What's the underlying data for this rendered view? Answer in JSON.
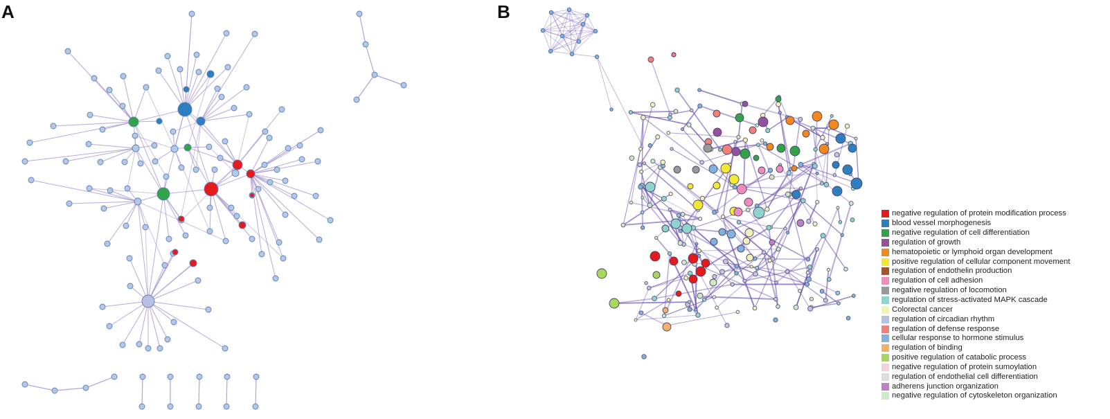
{
  "panels": {
    "a_label": "A",
    "b_label": "B"
  },
  "colors": {
    "node_default": "#b1c8e8",
    "node_stroke": "#5f7db4",
    "edge_a": "#a999d4",
    "edge_b": "#6a4fb4"
  },
  "legend": [
    {
      "label": "negative regulation of protein modification process",
      "color": "#e41a1c"
    },
    {
      "label": "blood vessel morphogenesis",
      "color": "#2e7fc1"
    },
    {
      "label": "negative regulation of cell differentiation",
      "color": "#33a34a"
    },
    {
      "label": "regulation of growth",
      "color": "#9451a0"
    },
    {
      "label": "hematopoietic or lymphoid organ development",
      "color": "#f5871f"
    },
    {
      "label": "positive regulation of cellular component movement",
      "color": "#f4e832"
    },
    {
      "label": "regulation of endothelin production",
      "color": "#a5542c"
    },
    {
      "label": "regulation of cell adhesion",
      "color": "#f08bbd"
    },
    {
      "label": "negative regulation of locomotion",
      "color": "#999999"
    },
    {
      "label": "regulation of stress-activated MAPK cascade",
      "color": "#8fd3d0"
    },
    {
      "label": "Colorectal cancer",
      "color": "#f2f2b8"
    },
    {
      "label": "regulation of circadian rhythm",
      "color": "#b9bfe0"
    },
    {
      "label": "regulation of defense response",
      "color": "#f08078"
    },
    {
      "label": "cellular response to hormone stimulus",
      "color": "#7fb2de"
    },
    {
      "label": "regulation of binding",
      "color": "#f4b06a"
    },
    {
      "label": "positive regulation of catabolic process",
      "color": "#a9d65f"
    },
    {
      "label": "negative regulation of protein sumoylation",
      "color": "#f7cede"
    },
    {
      "label": "regulation of endothelial cell differentiation",
      "color": "#dddddd"
    },
    {
      "label": "adherens junction organization",
      "color": "#c27fc8"
    },
    {
      "label": "negative regulation of cytoskeleton organization",
      "color": "#cfe8c8"
    }
  ]
}
